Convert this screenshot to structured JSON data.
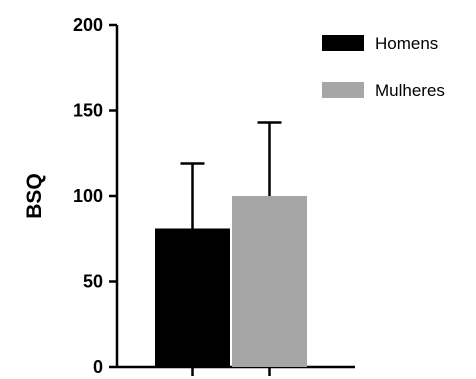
{
  "chart_data": {
    "type": "bar",
    "title": "",
    "xlabel": "",
    "ylabel": "BSQ",
    "ylim": [
      0,
      200
    ],
    "yticks": [
      0,
      50,
      100,
      150,
      200
    ],
    "grid": false,
    "legend_position": "top-right",
    "series": [
      {
        "name": "Homens",
        "value": 81,
        "error": 38,
        "color": "#000000"
      },
      {
        "name": "Mulheres",
        "value": 100,
        "error": 43,
        "color": "#a6a6a6"
      }
    ]
  }
}
